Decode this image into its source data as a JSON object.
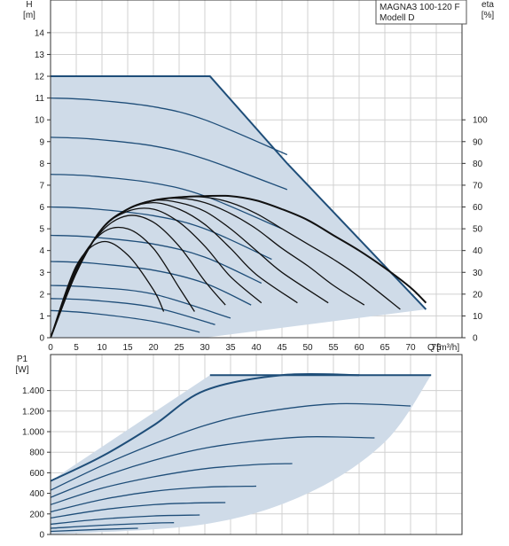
{
  "legend_box": {
    "line1": "MAGNA3 100-120 F",
    "line2": "Modell D"
  },
  "colors": {
    "grid": "#d0d0d0",
    "area_fill": "#cfdbe8",
    "curve": "#1f4e79",
    "eta": "#111111",
    "axis": "#333333"
  },
  "chart_data": [
    {
      "type": "line",
      "panel": "head",
      "ylabel_top": "H",
      "ylabel_unit": "[m]",
      "y2label_top": "eta",
      "y2label_unit": "[%]",
      "xlabel": "Q [m³/h]",
      "xlim": [
        0,
        80
      ],
      "ylim": [
        0,
        15.5
      ],
      "x_ticks": [
        0,
        5,
        10,
        15,
        20,
        25,
        30,
        35,
        40,
        45,
        50,
        55,
        60,
        65,
        70,
        75
      ],
      "y_ticks": [
        0,
        1,
        2,
        3,
        4,
        5,
        6,
        7,
        8,
        9,
        10,
        11,
        12,
        13,
        14
      ],
      "y2_ticks": [
        0,
        10,
        20,
        30,
        40,
        50,
        60,
        70,
        80,
        90,
        100
      ],
      "grid": true,
      "operating_area": {
        "x": [
          0,
          31,
          46,
          73,
          30,
          0
        ],
        "y": [
          12,
          12,
          8,
          1.3,
          0,
          0
        ]
      },
      "series": [
        {
          "x": [
            0,
            8,
            20,
            29
          ],
          "y": [
            1.25,
            1.12,
            0.75,
            0.25
          ]
        },
        {
          "x": [
            0,
            8,
            20,
            32
          ],
          "y": [
            1.8,
            1.72,
            1.4,
            0.6
          ]
        },
        {
          "x": [
            0,
            8,
            20,
            35
          ],
          "y": [
            2.4,
            2.32,
            2.0,
            0.9
          ]
        },
        {
          "x": [
            0,
            8,
            20,
            30,
            39
          ],
          "y": [
            3.5,
            3.42,
            3.1,
            2.5,
            1.5
          ]
        },
        {
          "x": [
            0,
            8,
            20,
            30,
            41
          ],
          "y": [
            4.7,
            4.62,
            4.3,
            3.7,
            2.5
          ]
        },
        {
          "x": [
            0,
            8,
            20,
            30,
            43
          ],
          "y": [
            6.0,
            5.92,
            5.6,
            5.0,
            3.6
          ]
        },
        {
          "x": [
            0,
            8,
            20,
            30,
            45
          ],
          "y": [
            7.5,
            7.42,
            7.1,
            6.5,
            5.0
          ]
        },
        {
          "x": [
            0,
            8,
            20,
            30,
            46
          ],
          "y": [
            9.2,
            9.12,
            8.8,
            8.2,
            6.8
          ]
        },
        {
          "x": [
            0,
            8,
            20,
            30,
            46
          ],
          "y": [
            11.0,
            10.92,
            10.6,
            10.0,
            8.4
          ]
        }
      ],
      "eta_curves": [
        {
          "x": [
            0,
            5,
            10,
            15,
            20,
            22
          ],
          "y": [
            0,
            3.3,
            4.4,
            3.8,
            2.2,
            1.2
          ]
        },
        {
          "x": [
            0,
            5,
            10,
            15,
            20,
            25,
            28
          ],
          "y": [
            0,
            3.2,
            4.8,
            5.0,
            4.1,
            2.3,
            1.2
          ]
        },
        {
          "x": [
            0,
            5,
            10,
            15,
            20,
            25,
            30,
            34
          ],
          "y": [
            0,
            3.1,
            4.9,
            5.6,
            5.3,
            4.2,
            2.6,
            1.5
          ]
        },
        {
          "x": [
            0,
            5,
            10,
            15,
            20,
            25,
            30,
            35,
            41
          ],
          "y": [
            0,
            3.0,
            5.0,
            5.8,
            5.9,
            5.3,
            4.2,
            2.8,
            1.6
          ]
        },
        {
          "x": [
            0,
            5,
            10,
            15,
            20,
            25,
            30,
            35,
            40,
            48
          ],
          "y": [
            0,
            3.0,
            5.0,
            5.9,
            6.2,
            5.9,
            5.2,
            4.1,
            2.9,
            1.6
          ]
        },
        {
          "x": [
            0,
            5,
            10,
            15,
            20,
            25,
            30,
            35,
            40,
            45,
            54
          ],
          "y": [
            0,
            3.0,
            5.0,
            5.9,
            6.3,
            6.2,
            5.8,
            5.0,
            4.0,
            3.0,
            1.6
          ]
        },
        {
          "x": [
            0,
            5,
            10,
            15,
            20,
            25,
            30,
            35,
            40,
            45,
            50,
            55,
            61
          ],
          "y": [
            0,
            3.0,
            5.0,
            5.9,
            6.3,
            6.4,
            6.2,
            5.7,
            5.0,
            4.1,
            3.3,
            2.4,
            1.5
          ]
        },
        {
          "x": [
            0,
            5,
            10,
            15,
            20,
            25,
            30,
            35,
            40,
            45,
            50,
            55,
            60,
            68
          ],
          "y": [
            0,
            3.0,
            5.0,
            5.9,
            6.3,
            6.45,
            6.45,
            6.2,
            5.7,
            5.0,
            4.3,
            3.6,
            2.8,
            1.3
          ]
        },
        {
          "x": [
            0,
            5,
            10,
            15,
            20,
            25,
            30,
            35,
            40,
            45,
            50,
            55,
            60,
            65,
            70,
            73
          ],
          "y": [
            0,
            3.0,
            5.0,
            5.9,
            6.3,
            6.45,
            6.5,
            6.5,
            6.3,
            5.9,
            5.4,
            4.7,
            4.0,
            3.2,
            2.3,
            1.6
          ]
        }
      ]
    },
    {
      "type": "line",
      "panel": "power",
      "ylabel_top": "P1",
      "ylabel_unit": "[W]",
      "xlim": [
        0,
        80
      ],
      "ylim": [
        0,
        1750
      ],
      "y_ticks": [
        0,
        200,
        400,
        600,
        800,
        1000,
        1200,
        1400
      ],
      "y_tick_labels": [
        "0",
        "200",
        "400",
        "600",
        "800",
        "1.000",
        "1.200",
        "1.400"
      ],
      "grid": true,
      "operating_area": {
        "x": [
          0,
          31,
          74,
          65,
          50,
          30,
          0
        ],
        "y": [
          520,
          1550,
          1550,
          900,
          400,
          100,
          0
        ]
      },
      "series": [
        {
          "x": [
            0,
            10,
            20,
            30,
            45,
            60
          ],
          "y": [
            520,
            760,
            1060,
            1400,
            1550,
            1550
          ]
        },
        {
          "x": [
            0,
            10,
            20,
            30,
            40,
            55,
            70
          ],
          "y": [
            430,
            670,
            880,
            1060,
            1180,
            1270,
            1250
          ]
        },
        {
          "x": [
            0,
            10,
            20,
            30,
            40,
            50,
            63
          ],
          "y": [
            360,
            560,
            720,
            840,
            910,
            950,
            940
          ]
        },
        {
          "x": [
            0,
            10,
            20,
            30,
            40,
            47
          ],
          "y": [
            290,
            450,
            560,
            640,
            680,
            690
          ]
        },
        {
          "x": [
            0,
            10,
            20,
            30,
            40
          ],
          "y": [
            220,
            340,
            420,
            460,
            470
          ]
        },
        {
          "x": [
            0,
            10,
            20,
            27,
            34
          ],
          "y": [
            160,
            240,
            290,
            305,
            310
          ]
        },
        {
          "x": [
            0,
            10,
            20,
            29
          ],
          "y": [
            100,
            150,
            180,
            190
          ]
        },
        {
          "x": [
            0,
            10,
            20,
            24
          ],
          "y": [
            60,
            90,
            110,
            115
          ]
        },
        {
          "x": [
            0,
            10,
            17
          ],
          "y": [
            30,
            50,
            60
          ]
        }
      ]
    }
  ]
}
